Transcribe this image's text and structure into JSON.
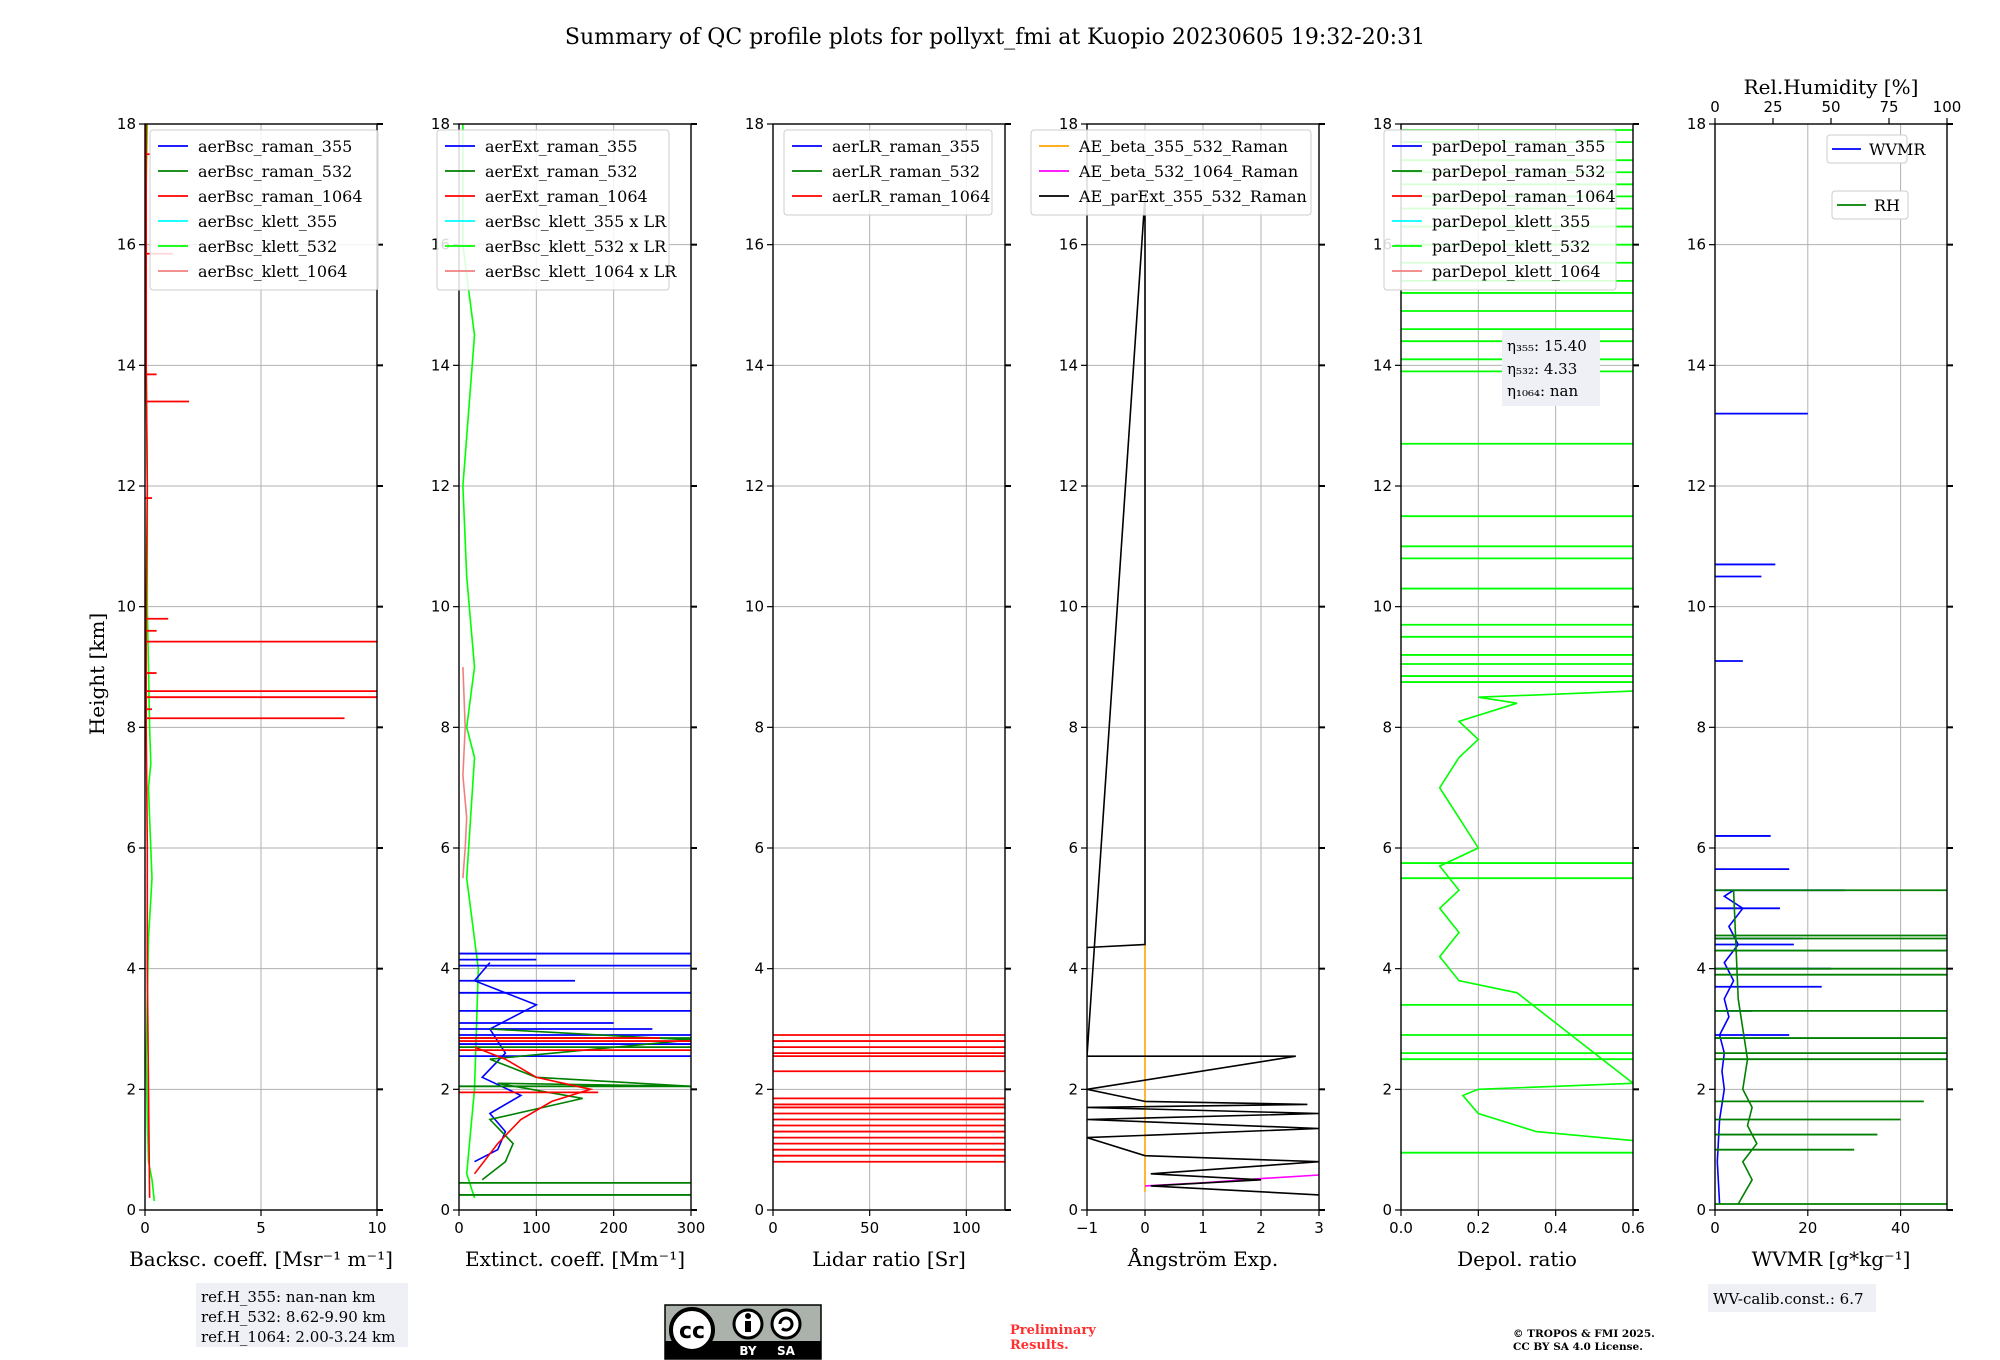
{
  "title": "Summary of QC profile plots for pollyxt_fmi at Kuopio 20230605 19:32-20:31",
  "ylabel": "Height [km]",
  "colors": {
    "c355": "#0000ff",
    "c532": "#008000",
    "c1064": "#ff0000",
    "k355": "#00ffff",
    "k532": "#00ff00",
    "k1064": "#f08080",
    "ae1": "#ffa500",
    "ae2": "#ff00ff",
    "ae3": "#000000",
    "grid": "#b0b0b0",
    "box": "#eef0f5"
  },
  "chart_data": [
    {
      "type": "line",
      "xlabel": "Backsc. coeff. [Msr⁻¹ m⁻¹]",
      "xlim": [
        0,
        10
      ],
      "ylim": [
        0,
        18
      ],
      "xticks": [
        "0",
        "5",
        "10"
      ],
      "yticks": [
        "0",
        "2",
        "4",
        "6",
        "8",
        "10",
        "12",
        "14",
        "16",
        "18"
      ],
      "legend": [
        "aerBsc_raman_355",
        "aerBsc_raman_532",
        "aerBsc_raman_1064",
        "aerBsc_klett_355",
        "aerBsc_klett_532",
        "aerBsc_klett_1064"
      ],
      "legend_colors": [
        "c355",
        "c532",
        "c1064",
        "k355",
        "k532",
        "k1064"
      ],
      "series": [
        {
          "name": "aerBsc_klett_532",
          "color": "k532",
          "mode": "line",
          "x": [
            0.4,
            0.3,
            0.15,
            0.1,
            0.05,
            0.1,
            0.15,
            0.3,
            0.2,
            0.15,
            0.25,
            0.2,
            0.1,
            0.1,
            0.05,
            0.05,
            0.05,
            0.1
          ],
          "y": [
            0.15,
            0.5,
            0.8,
            1.5,
            2.5,
            3.5,
            4.5,
            5.5,
            6.5,
            7.0,
            7.4,
            8.0,
            10,
            12,
            14,
            16,
            17,
            18
          ]
        },
        {
          "name": "aerBsc_raman_1064",
          "color": "c1064",
          "mode": "line",
          "x": [
            0.2,
            0.15,
            0.1,
            0.1,
            0.05,
            0.05,
            0.1,
            0.05,
            0.05,
            0.05
          ],
          "y": [
            0.2,
            2,
            4,
            6,
            8,
            10,
            12,
            14,
            16,
            18
          ]
        },
        {
          "name": "aerBsc_raman_1064",
          "color": "c1064",
          "mode": "spikes",
          "x": [
            8.6,
            10,
            10,
            10,
            0.5,
            1.0,
            0.5,
            0.3,
            1.9,
            0.5,
            0.3,
            1.2,
            0.2
          ],
          "y": [
            8.15,
            8.5,
            8.6,
            9.42,
            9.6,
            9.8,
            8.9,
            8.3,
            13.4,
            13.85,
            11.8,
            15.85,
            17.5
          ]
        }
      ]
    },
    {
      "type": "line",
      "xlabel": "Extinct. coeff. [Mm⁻¹]",
      "xlim": [
        0,
        300
      ],
      "ylim": [
        0,
        18
      ],
      "xticks": [
        "0",
        "100",
        "200",
        "300"
      ],
      "yticks": [
        "0",
        "2",
        "4",
        "6",
        "8",
        "10",
        "12",
        "14",
        "16",
        "18"
      ],
      "legend": [
        "aerExt_raman_355",
        "aerExt_raman_532",
        "aerExt_raman_1064",
        "aerBsc_klett_355 x LR",
        "aerBsc_klett_532 x LR",
        "aerBsc_klett_1064 x LR"
      ],
      "legend_colors": [
        "c355",
        "c532",
        "c1064",
        "k355",
        "k532",
        "k1064"
      ],
      "series": [
        {
          "name": "aerBsc_klett_532 x LR",
          "color": "k532",
          "mode": "line",
          "x": [
            20,
            10,
            20,
            25,
            10,
            15,
            20,
            10,
            20,
            10,
            5,
            20,
            10,
            5,
            5,
            5
          ],
          "y": [
            0.2,
            0.6,
            2.0,
            4.0,
            5.5,
            6.5,
            7.5,
            8.0,
            9.0,
            10.5,
            12,
            14.5,
            15.5,
            16,
            17,
            18
          ]
        },
        {
          "name": "aerBsc_klett_1064 x LR",
          "color": "k1064",
          "mode": "line",
          "x": [
            5,
            8,
            10,
            5,
            8,
            5
          ],
          "y": [
            5.5,
            6.0,
            6.5,
            7.2,
            8.0,
            9.0
          ]
        },
        {
          "name": "aerExt_raman_355",
          "color": "c355",
          "mode": "line",
          "x": [
            20,
            50,
            60,
            40,
            80,
            30,
            60,
            40,
            100,
            20,
            40
          ],
          "y": [
            0.8,
            1.0,
            1.3,
            1.6,
            1.9,
            2.2,
            2.6,
            3.0,
            3.4,
            3.8,
            4.1
          ]
        },
        {
          "name": "aerExt_raman_355",
          "color": "c355",
          "mode": "spikes",
          "x": [
            300,
            300,
            300,
            150,
            300,
            200,
            300,
            300,
            300,
            100,
            250
          ],
          "y": [
            4.05,
            4.25,
            3.6,
            3.8,
            3.3,
            3.1,
            2.9,
            2.75,
            2.55,
            4.15,
            3.0
          ]
        },
        {
          "name": "aerExt_raman_532",
          "color": "c532",
          "mode": "line",
          "x": [
            30,
            60,
            70,
            40,
            160,
            50,
            300,
            100,
            40,
            300,
            40
          ],
          "y": [
            0.5,
            0.8,
            1.1,
            1.5,
            1.85,
            2.1,
            2.05,
            2.2,
            2.5,
            2.82,
            3.0
          ]
        },
        {
          "name": "aerExt_raman_532",
          "color": "c532",
          "mode": "spikes",
          "x": [
            300,
            300,
            300,
            300,
            300
          ],
          "y": [
            0.25,
            0.45,
            2.05,
            2.85,
            2.7
          ]
        },
        {
          "name": "aerExt_raman_1064",
          "color": "c1064",
          "mode": "line",
          "x": [
            20,
            50,
            80,
            120,
            170,
            100,
            60,
            20
          ],
          "y": [
            0.6,
            1.1,
            1.5,
            1.8,
            2.0,
            2.2,
            2.5,
            2.7
          ]
        },
        {
          "name": "aerExt_raman_1064",
          "color": "c1064",
          "mode": "spikes",
          "x": [
            300,
            300,
            260,
            180
          ],
          "y": [
            2.8,
            2.65,
            2.85,
            1.95
          ]
        }
      ]
    },
    {
      "type": "line",
      "xlabel": "Lidar ratio [Sr]",
      "xlim": [
        0,
        120
      ],
      "ylim": [
        0,
        18
      ],
      "xticks": [
        "0",
        "50",
        "100"
      ],
      "yticks": [
        "0",
        "2",
        "4",
        "6",
        "8",
        "10",
        "12",
        "14",
        "16",
        "18"
      ],
      "legend": [
        "aerLR_raman_355",
        "aerLR_raman_532",
        "aerLR_raman_1064"
      ],
      "legend_colors": [
        "c355",
        "c532",
        "c1064"
      ],
      "series": [
        {
          "name": "aerLR_raman_1064",
          "color": "c1064",
          "mode": "spikes",
          "x": [
            120,
            120,
            120,
            120,
            120,
            120,
            120,
            120,
            120,
            120,
            120,
            120,
            120,
            120,
            120,
            120,
            120,
            120
          ],
          "y": [
            0.8,
            0.9,
            1.0,
            1.1,
            1.2,
            1.3,
            1.4,
            1.5,
            1.6,
            1.7,
            1.75,
            1.85,
            2.3,
            2.55,
            2.6,
            2.7,
            2.8,
            2.9
          ]
        }
      ]
    },
    {
      "type": "line",
      "xlabel": "Ångström Exp.",
      "xlim": [
        -1,
        3
      ],
      "ylim": [
        0,
        18
      ],
      "xticks": [
        "−1",
        "0",
        "1",
        "2",
        "3"
      ],
      "yticks": [
        "0",
        "2",
        "4",
        "6",
        "8",
        "10",
        "12",
        "14",
        "16",
        "18"
      ],
      "legend": [
        "AE_beta_355_532_Raman",
        "AE_beta_532_1064_Raman",
        "AE_parExt_355_532_Raman"
      ],
      "legend_colors": [
        "ae1",
        "ae2",
        "ae3"
      ],
      "series": [
        {
          "name": "AE_beta_355_532_Raman",
          "color": "ae1",
          "mode": "line",
          "x": [
            0,
            0
          ],
          "y": [
            0.3,
            4.4
          ]
        },
        {
          "name": "AE_beta_532_1064_Raman",
          "color": "ae2",
          "mode": "line",
          "x": [
            0,
            1,
            2,
            3
          ],
          "y": [
            0.4,
            0.45,
            0.52,
            0.58
          ]
        },
        {
          "name": "AE_parExt_355_532_Raman",
          "color": "ae3",
          "mode": "line",
          "x": [
            -1,
            0,
            0,
            -1,
            2.6,
            -1,
            -0.5,
            0,
            2.8,
            -1,
            3,
            -1,
            3,
            -1,
            0,
            3,
            0.1,
            2,
            0.1,
            3
          ],
          "y": [
            4.35,
            4.4,
            16.8,
            2.55,
            2.55,
            2.0,
            1.9,
            1.8,
            1.75,
            1.7,
            1.6,
            1.5,
            1.35,
            1.2,
            0.9,
            0.8,
            0.6,
            0.5,
            0.4,
            0.25
          ]
        }
      ]
    },
    {
      "type": "line",
      "xlabel": "Depol. ratio",
      "xlim": [
        0,
        0.6
      ],
      "ylim": [
        0,
        18
      ],
      "xticks": [
        "0.0",
        "0.2",
        "0.4",
        "0.6"
      ],
      "yticks": [
        "0",
        "2",
        "4",
        "6",
        "8",
        "10",
        "12",
        "14",
        "16",
        "18"
      ],
      "legend": [
        "parDepol_raman_355",
        "parDepol_raman_532",
        "parDepol_raman_1064",
        "parDepol_klett_355",
        "parDepol_klett_532",
        "parDepol_klett_1064"
      ],
      "legend_colors": [
        "c355",
        "c532",
        "c1064",
        "k355",
        "k532",
        "k1064"
      ],
      "series": [
        {
          "name": "parDepol_klett_532",
          "color": "k532",
          "mode": "line",
          "x": [
            0.6,
            0.35,
            0.2,
            0.16,
            0.2,
            0.6,
            0.3,
            0.15,
            0.1,
            0.15,
            0.1,
            0.15,
            0.1,
            0.2,
            0.15,
            0.1,
            0.15,
            0.2,
            0.15,
            0.3,
            0.2,
            0.6
          ],
          "y": [
            1.15,
            1.3,
            1.6,
            1.9,
            2.0,
            2.1,
            3.6,
            3.8,
            4.2,
            4.6,
            5.0,
            5.3,
            5.7,
            6.0,
            6.5,
            7.0,
            7.5,
            7.8,
            8.1,
            8.4,
            8.5,
            8.6
          ]
        },
        {
          "name": "parDepol_klett_532",
          "color": "k532",
          "mode": "spikes",
          "x": [
            0.6,
            0.6,
            0.6,
            0.6,
            0.6,
            0.6,
            0.6,
            0.6,
            0.6,
            0.6,
            0.6,
            0.6,
            0.6,
            0.6,
            0.6,
            0.6,
            0.6,
            0.6,
            0.6,
            0.6,
            0.6,
            0.6,
            0.6,
            0.6,
            0.6,
            0.6,
            0.6,
            0.6,
            0.6,
            0.6,
            0.6,
            0.6,
            0.6,
            0.6,
            0.6
          ],
          "y": [
            0.95,
            2.5,
            2.6,
            2.9,
            3.4,
            5.5,
            5.75,
            8.75,
            8.85,
            9.05,
            9.2,
            9.5,
            9.7,
            10.3,
            10.8,
            11.0,
            11.5,
            12.7,
            13.9,
            14.1,
            14.4,
            14.6,
            14.9,
            15.2,
            15.4,
            15.7,
            16.0,
            16.3,
            16.6,
            16.8,
            17.0,
            17.2,
            17.4,
            17.7,
            17.9
          ]
        }
      ]
    },
    {
      "type": "line",
      "xlabel": "WVMR [g*kg⁻¹]",
      "xlim": [
        0,
        50
      ],
      "ylim": [
        0,
        18
      ],
      "top_axis": {
        "label": "Rel.Humidity [%]",
        "xlim": [
          0,
          100
        ],
        "xticks": [
          "0",
          "25",
          "50",
          "75",
          "100"
        ]
      },
      "xticks": [
        "0",
        "20",
        "40"
      ],
      "yticks": [
        "0",
        "2",
        "4",
        "6",
        "8",
        "10",
        "12",
        "14",
        "16",
        "18"
      ],
      "legend": [
        "WVMR",
        "RH"
      ],
      "legend_colors": [
        "c355",
        "c532"
      ],
      "series": [
        {
          "name": "WVMR",
          "color": "c355",
          "mode": "line",
          "x": [
            1,
            0.5,
            1,
            2,
            1.5,
            2,
            1,
            3,
            2,
            4,
            2,
            5,
            3,
            6,
            2,
            4
          ],
          "y": [
            0.1,
            0.8,
            1.5,
            2.0,
            2.3,
            2.6,
            2.9,
            3.2,
            3.5,
            3.8,
            4.1,
            4.4,
            4.7,
            5.0,
            5.2,
            5.3
          ]
        },
        {
          "name": "WVMR",
          "color": "c355",
          "mode": "spikes",
          "x": [
            20,
            13,
            10,
            6,
            28,
            25,
            17,
            23,
            16,
            8,
            14,
            16,
            12,
            19
          ],
          "y": [
            13.2,
            10.7,
            10.5,
            9.1,
            5.3,
            4.0,
            4.4,
            3.7,
            2.9,
            3.3,
            5.0,
            5.65,
            6.2,
            4.5
          ]
        },
        {
          "name": "RH",
          "color": "c532",
          "mode": "line",
          "x": [
            5,
            8,
            6,
            9,
            7,
            8,
            6,
            7,
            5,
            4
          ],
          "y": [
            0.1,
            0.5,
            0.8,
            1.1,
            1.4,
            1.7,
            2.0,
            2.5,
            3.5,
            5.3
          ]
        },
        {
          "name": "RH",
          "color": "c532",
          "mode": "spikes",
          "x": [
            50,
            50,
            50,
            50,
            50,
            50,
            50,
            50,
            50,
            50,
            50,
            40,
            45,
            35,
            30
          ],
          "y": [
            0.1,
            2.5,
            2.6,
            2.85,
            3.3,
            3.9,
            4.0,
            4.3,
            4.5,
            4.55,
            5.3,
            1.5,
            1.8,
            1.25,
            1.0
          ]
        }
      ]
    }
  ],
  "annotations": {
    "ref_h": [
      "ref.H_355: nan-nan km",
      "ref.H_532: 8.62-9.90 km",
      "ref.H_1064: 2.00-3.24 km"
    ],
    "eta": [
      "η₃₅₅: 15.40",
      "η₅₃₂: 4.33",
      "η₁₀₆₄: nan"
    ],
    "wv_calib": "WV-calib.const.: 6.7",
    "cc_by": "BY",
    "cc_sa": "SA",
    "cc": "cc",
    "preliminary": [
      "Preliminary",
      "Results."
    ],
    "copyright": [
      "© TROPOS & FMI 2025.",
      "CC BY SA 4.0 License."
    ]
  }
}
